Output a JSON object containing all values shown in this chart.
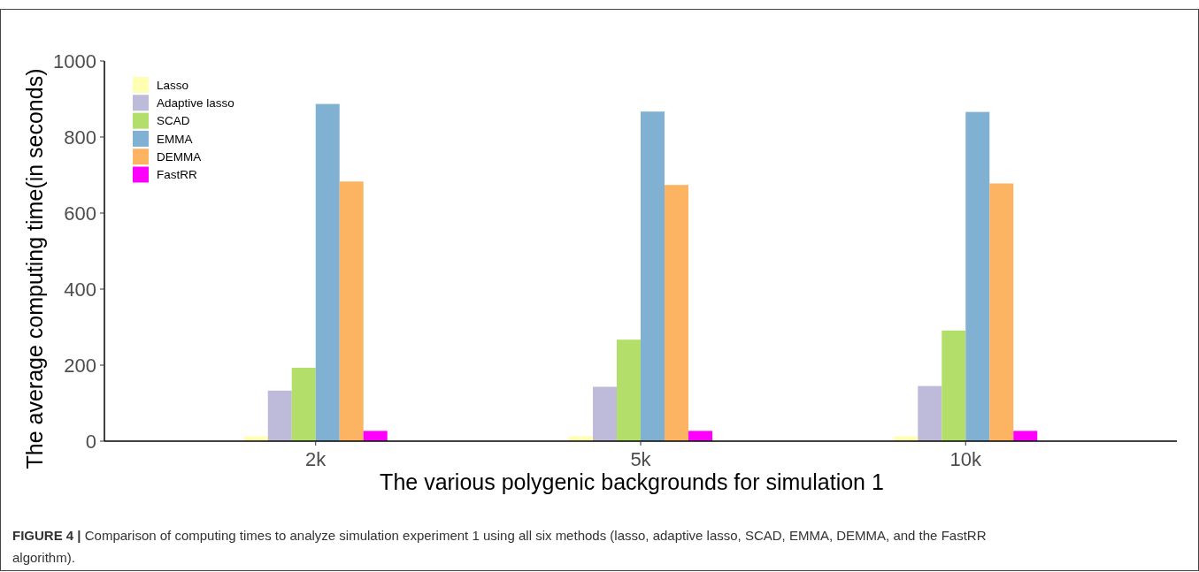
{
  "chart_data": {
    "type": "bar",
    "xlabel": "The various polygenic backgrounds for simulation 1",
    "ylabel": "The average computing time(in seconds)",
    "categories": [
      "2k",
      "5k",
      "10k"
    ],
    "series": [
      {
        "name": "Lasso",
        "color": "#ffffb3",
        "values": [
          13,
          13,
          13
        ]
      },
      {
        "name": "Adaptive lasso",
        "color": "#bebada",
        "values": [
          133,
          143,
          145
        ]
      },
      {
        "name": "SCAD",
        "color": "#b3de69",
        "values": [
          193,
          267,
          291
        ]
      },
      {
        "name": "EMMA",
        "color": "#80b1d3",
        "values": [
          887,
          867,
          866
        ]
      },
      {
        "name": "DEMMA",
        "color": "#fdb462",
        "values": [
          683,
          674,
          678
        ]
      },
      {
        "name": "FastRR",
        "color": "#ff00ff",
        "values": [
          27,
          27,
          27
        ]
      }
    ],
    "ylim": [
      0,
      1000
    ],
    "yticks": [
      0,
      200,
      400,
      600,
      800,
      1000
    ],
    "legend": "top left",
    "annotations": [
      "FIGURE 4 | Comparison of computing times to analyze simulation experiment 1 using all six methods (lasso, adaptive lasso, SCAD, EMMA, DEMMA, and the FastRR algorithm)."
    ]
  }
}
